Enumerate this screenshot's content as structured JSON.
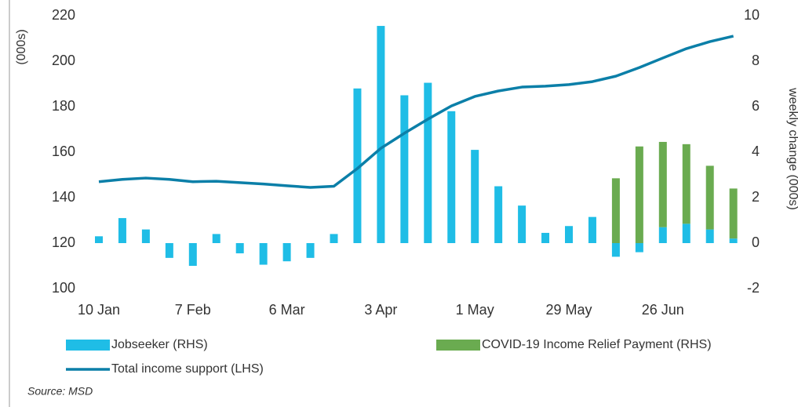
{
  "chart_data": {
    "type": "bar-line",
    "y_label": "(000s)",
    "y2_label": "weekly change (000s)",
    "categories": [
      "10 Jan",
      null,
      null,
      null,
      "7 Feb",
      null,
      null,
      null,
      "6 Mar",
      null,
      null,
      null,
      "3 Apr",
      null,
      null,
      null,
      "1 May",
      null,
      null,
      null,
      "29 May",
      null,
      null,
      null,
      "26 Jun",
      null,
      null,
      null
    ],
    "series": [
      {
        "name": "Jobseeker (RHS)",
        "color": "#1fbde6",
        "axis": "y2",
        "kind": "bar",
        "values": [
          0.3,
          1.1,
          0.6,
          -0.65,
          -1.0,
          0.4,
          -0.45,
          -0.95,
          -0.8,
          -0.65,
          0.4,
          6.8,
          9.55,
          6.5,
          7.05,
          5.8,
          4.1,
          2.5,
          1.65,
          0.45,
          0.75,
          1.15,
          -0.6,
          -0.4,
          0.7,
          0.85,
          0.6,
          0.2
        ]
      },
      {
        "name": "COVID-19 Income Relief Payment (RHS)",
        "color": "#6aab50",
        "axis": "y2",
        "kind": "bar",
        "values": [
          null,
          null,
          null,
          null,
          null,
          null,
          null,
          null,
          null,
          null,
          null,
          null,
          null,
          null,
          null,
          null,
          null,
          null,
          null,
          null,
          null,
          null,
          2.85,
          4.25,
          3.75,
          3.5,
          2.8,
          2.2
        ]
      },
      {
        "name": "Total income support (LHS)",
        "color": "#0b7fa8",
        "kind": "line",
        "values": [
          147,
          148,
          148.6,
          148,
          147,
          147.2,
          146.6,
          146,
          145.2,
          144.5,
          145,
          152.8,
          161.7,
          168.3,
          174.5,
          180.3,
          184.5,
          186.9,
          188.6,
          189,
          189.7,
          191,
          193.4,
          197.2,
          201.4,
          205.5,
          208.6,
          211
        ]
      }
    ],
    "ylim": [
      100,
      220
    ],
    "yticks": [
      100,
      120,
      140,
      160,
      180,
      200,
      220
    ],
    "y2lim": [
      -2,
      10
    ],
    "y2ticks": [
      -2,
      0,
      2,
      4,
      6,
      8,
      10
    ],
    "source": "Source: MSD"
  }
}
